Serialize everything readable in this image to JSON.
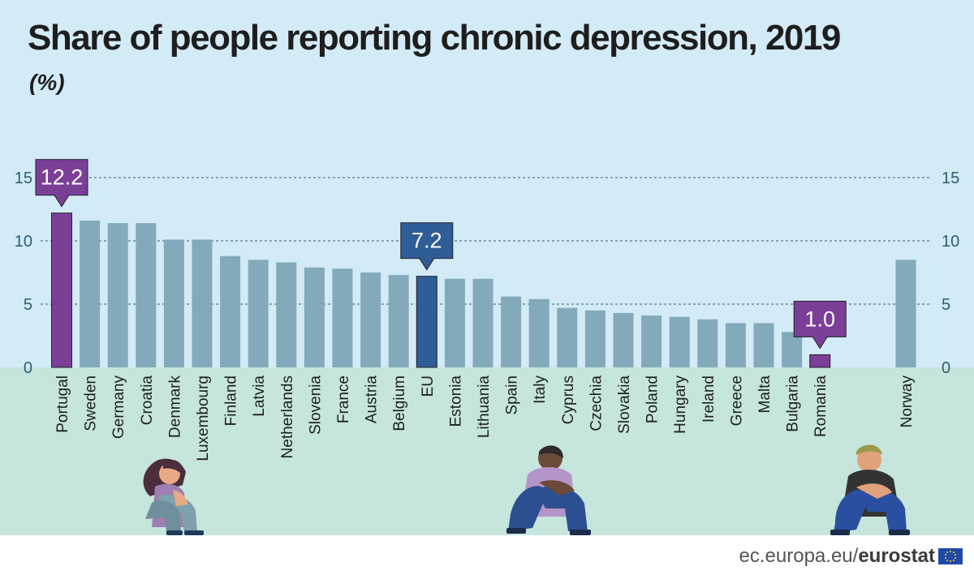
{
  "header": {
    "title": "Share of people reporting chronic depression, 2019",
    "subtitle": "(%)"
  },
  "chart_data": {
    "type": "bar",
    "title": "Share of people reporting chronic depression, 2019",
    "ylabel": "(%)",
    "xlabel": "",
    "ylim": [
      0,
      15
    ],
    "yticks": [
      "0",
      "5",
      "10",
      "15"
    ],
    "grid": true,
    "categories": [
      "Portugal",
      "Sweden",
      "Germany",
      "Croatia",
      "Denmark",
      "Luxembourg",
      "Finland",
      "Latvia",
      "Netherlands",
      "Slovenia",
      "France",
      "Austria",
      "Belgium",
      "EU",
      "Estonia",
      "Lithuania",
      "Spain",
      "Italy",
      "Cyprus",
      "Czechia",
      "Slovakia",
      "Poland",
      "Hungary",
      "Ireland",
      "Greece",
      "Malta",
      "Bulgaria",
      "Romania",
      "Norway"
    ],
    "values": [
      12.2,
      11.6,
      11.4,
      11.4,
      10.1,
      10.1,
      8.8,
      8.5,
      8.3,
      7.9,
      7.8,
      7.5,
      7.3,
      7.2,
      7.0,
      7.0,
      5.6,
      5.4,
      4.7,
      4.5,
      4.3,
      4.1,
      4.0,
      3.8,
      3.5,
      3.5,
      2.8,
      1.0,
      8.5
    ],
    "colors": {
      "default": "#82aabb",
      "highlight_max": "#7b3f98",
      "highlight_eu": "#2f5d98",
      "highlight_min": "#7b3f98"
    },
    "callouts": [
      {
        "category": "Portugal",
        "label": "12.2",
        "color": "#7b3f98"
      },
      {
        "category": "EU",
        "label": "7.2",
        "color": "#2f5d98"
      },
      {
        "category": "Romania",
        "label": "1.0",
        "color": "#7b3f98"
      }
    ]
  },
  "footer": {
    "site": "ec.europa.eu/",
    "brand": "eurostat"
  },
  "illustrations": [
    "sad-woman-sitting-icon",
    "sad-person-sitting-icon",
    "sad-man-sitting-icon"
  ]
}
